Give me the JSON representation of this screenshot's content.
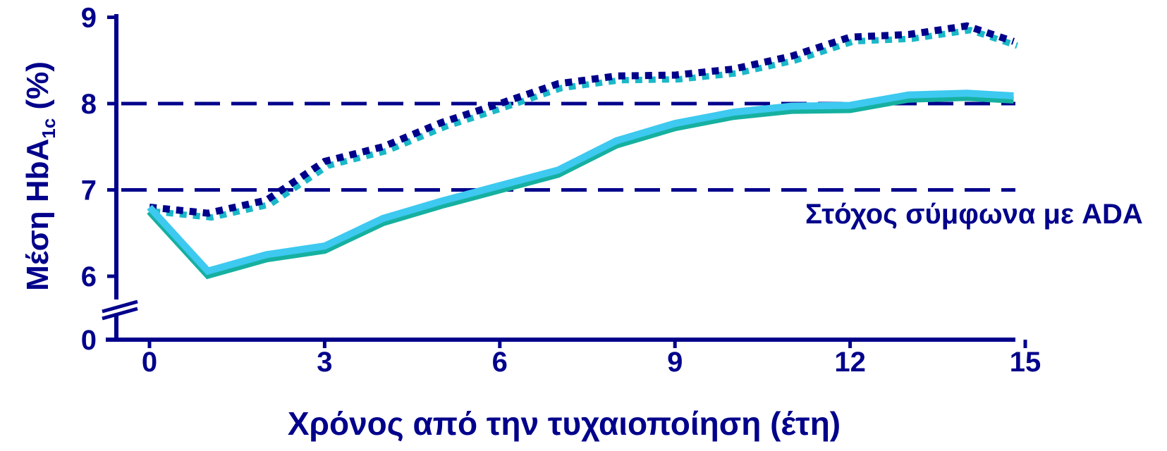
{
  "chart_data": {
    "type": "line",
    "xlabel": "Χρόνος από την τυχαιοποίηση (έτη)",
    "ylabel": {
      "prefix": "Μέση HbA",
      "subscript": "1c",
      "suffix": " (%)"
    },
    "x_ticks": [
      "0",
      "3",
      "6",
      "9",
      "12",
      "15"
    ],
    "y_ticks": [
      "0",
      "6",
      "7",
      "8",
      "9"
    ],
    "xlim": [
      0,
      15
    ],
    "ylim": [
      6,
      9
    ],
    "y_axis_break": true,
    "reference_lines": [
      {
        "y": 7,
        "style": "dashed"
      },
      {
        "y": 8,
        "style": "dashed"
      }
    ],
    "annotation": "Στόχος σύμφωνα με ADA",
    "series": [
      {
        "style": "dotted",
        "color": "#00008b",
        "shadow_color": "#1ab8c8",
        "x": [
          0,
          1,
          2,
          3,
          4,
          5,
          6,
          7,
          8,
          9,
          10,
          11,
          12,
          13,
          14,
          14.8
        ],
        "y": [
          6.8,
          6.73,
          6.88,
          7.33,
          7.5,
          7.78,
          8.0,
          8.23,
          8.32,
          8.33,
          8.4,
          8.55,
          8.77,
          8.8,
          8.9,
          8.72
        ]
      },
      {
        "style": "solid",
        "color": "#3dc9f0",
        "shadow_color": "#16b0a0",
        "x": [
          0,
          1,
          2,
          3,
          4,
          5,
          6,
          7,
          8,
          9,
          10,
          11,
          12,
          13,
          14,
          14.8
        ],
        "y": [
          6.8,
          6.06,
          6.25,
          6.35,
          6.67,
          6.87,
          7.05,
          7.23,
          7.57,
          7.77,
          7.9,
          7.97,
          7.98,
          8.1,
          8.12,
          8.09
        ]
      }
    ]
  }
}
